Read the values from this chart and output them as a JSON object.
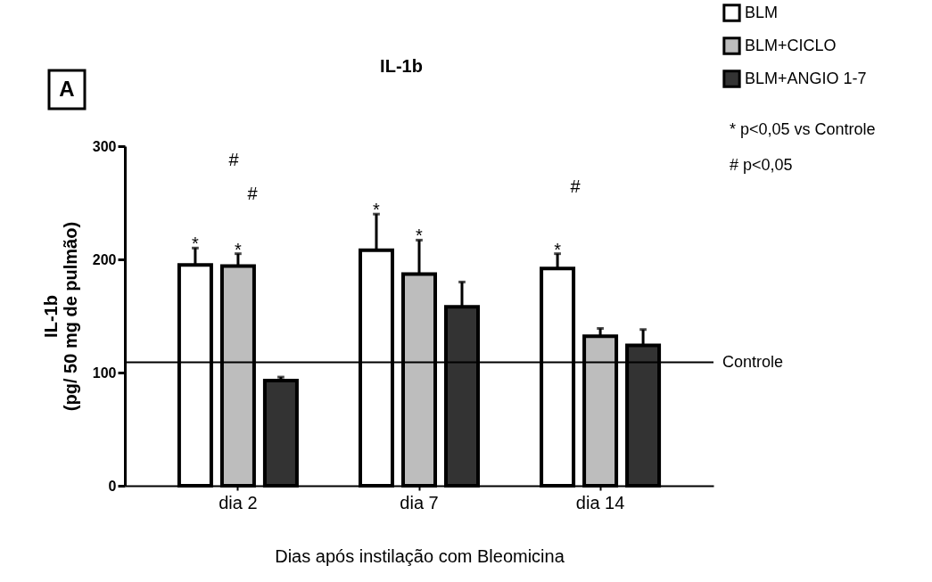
{
  "chart_data": {
    "type": "bar",
    "title": "IL-1b",
    "xlabel": "Dias após instilação com Bleomicina",
    "ylabel": "IL-1b\n(pg/ 50 mg de pulmão)",
    "categories": [
      "dia 2",
      "dia 7",
      "dia 14"
    ],
    "series": [
      {
        "name": "BLM",
        "color": "#ffffff",
        "values": [
          195,
          208,
          192
        ],
        "errors": [
          [
            195,
            210
          ],
          [
            208,
            240
          ],
          [
            192,
            205
          ]
        ],
        "value_labels": [
          "*",
          "*",
          "*"
        ]
      },
      {
        "name": "BLM+CICLO",
        "color": "#bdbdbd",
        "values": [
          194,
          187,
          132
        ],
        "errors": [
          [
            194,
            205
          ],
          [
            187,
            217
          ],
          [
            132,
            139
          ]
        ],
        "value_labels": [
          "*",
          "*",
          null
        ]
      },
      {
        "name": "BLM+ANGIO 1-7",
        "color": "#333333",
        "values": [
          93,
          158,
          124
        ],
        "errors": [
          [
            93,
            96
          ],
          [
            158,
            180
          ],
          [
            124,
            138
          ]
        ],
        "value_labels": [
          null,
          null,
          null
        ]
      }
    ],
    "ylim": [
      0,
      300
    ],
    "yticks": [
      0,
      100,
      200,
      300
    ],
    "grid": false,
    "legend": "top right",
    "ref_lines": [
      {
        "axis": "y",
        "value": 109,
        "label": "Controle"
      }
    ],
    "annotations": [
      "A",
      "* p<0,05 vs Controle",
      "# p<0,05",
      "#",
      "#",
      "#"
    ]
  }
}
